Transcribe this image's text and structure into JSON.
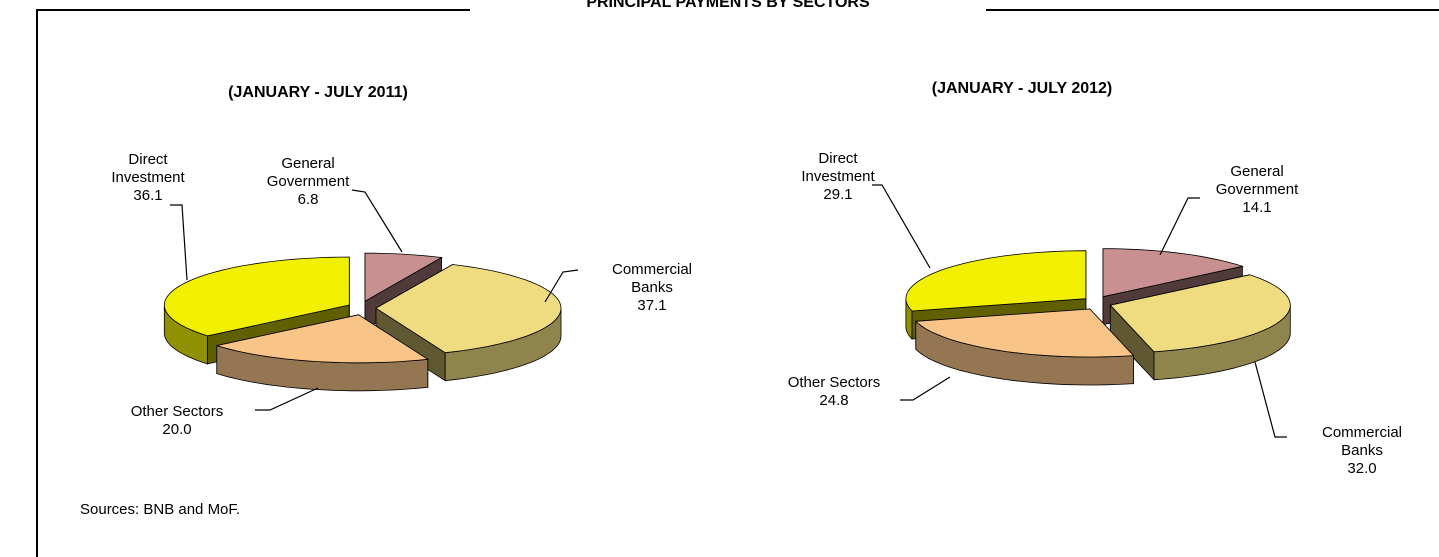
{
  "title": "PRINCIPAL PAYMENTS BY SECTORS",
  "source": "Sources: BNB and MoF.",
  "chart_data": [
    {
      "type": "pie3d",
      "subtitle": "(JANUARY - JULY 2011)",
      "categories": [
        "General Government",
        "Commercial Banks",
        "Other Sectors",
        "Direct Investment"
      ],
      "values": [
        6.8,
        37.1,
        20.0,
        36.1
      ],
      "value_labels": [
        "6.8",
        "37.1",
        "20.0",
        "36.1"
      ],
      "colors": [
        "#c89090",
        "#f0dc80",
        "#f8c488",
        "#f0f000"
      ]
    },
    {
      "type": "pie3d",
      "subtitle": "(JANUARY - JULY 2012)",
      "categories": [
        "General Government",
        "Commercial Banks",
        "Other Sectors",
        "Direct Investment"
      ],
      "values": [
        14.1,
        32.0,
        24.8,
        29.1
      ],
      "value_labels": [
        "14.1",
        "32.0",
        "24.8",
        "29.1"
      ],
      "colors": [
        "#c89090",
        "#f0dc80",
        "#f8c488",
        "#f0f000"
      ]
    }
  ]
}
